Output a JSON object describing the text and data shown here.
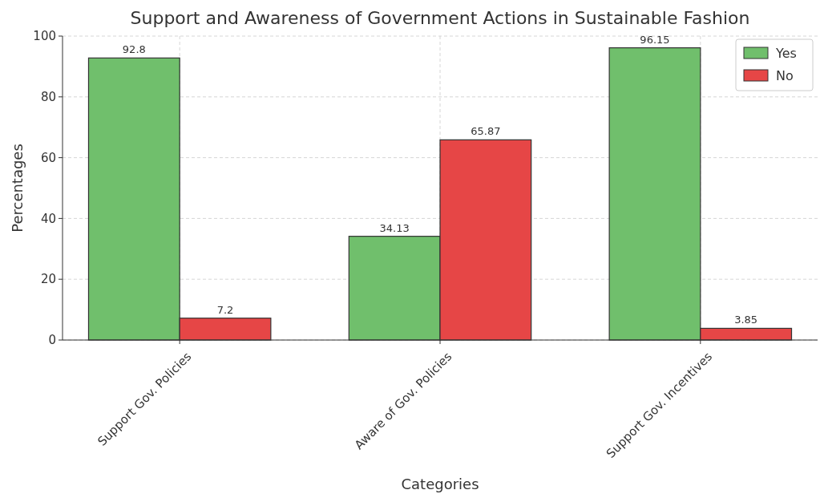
{
  "chart_data": {
    "type": "bar",
    "title": "Support and Awareness of Government Actions in Sustainable Fashion",
    "xlabel": "Categories",
    "ylabel": "Percentages",
    "categories": [
      "Support Gov. Policies",
      "Aware of Gov. Policies",
      "Support Gov. Incentives"
    ],
    "series": [
      {
        "name": "Yes",
        "color": "#70bf6c",
        "values": [
          92.8,
          34.13,
          96.15
        ]
      },
      {
        "name": "No",
        "color": "#e64646",
        "values": [
          7.2,
          65.87,
          3.85
        ]
      }
    ],
    "ylim": [
      0,
      100
    ],
    "yticks": [
      0,
      20,
      40,
      60,
      80,
      100
    ],
    "grid": true,
    "legend": "top right",
    "data_labels": true
  }
}
